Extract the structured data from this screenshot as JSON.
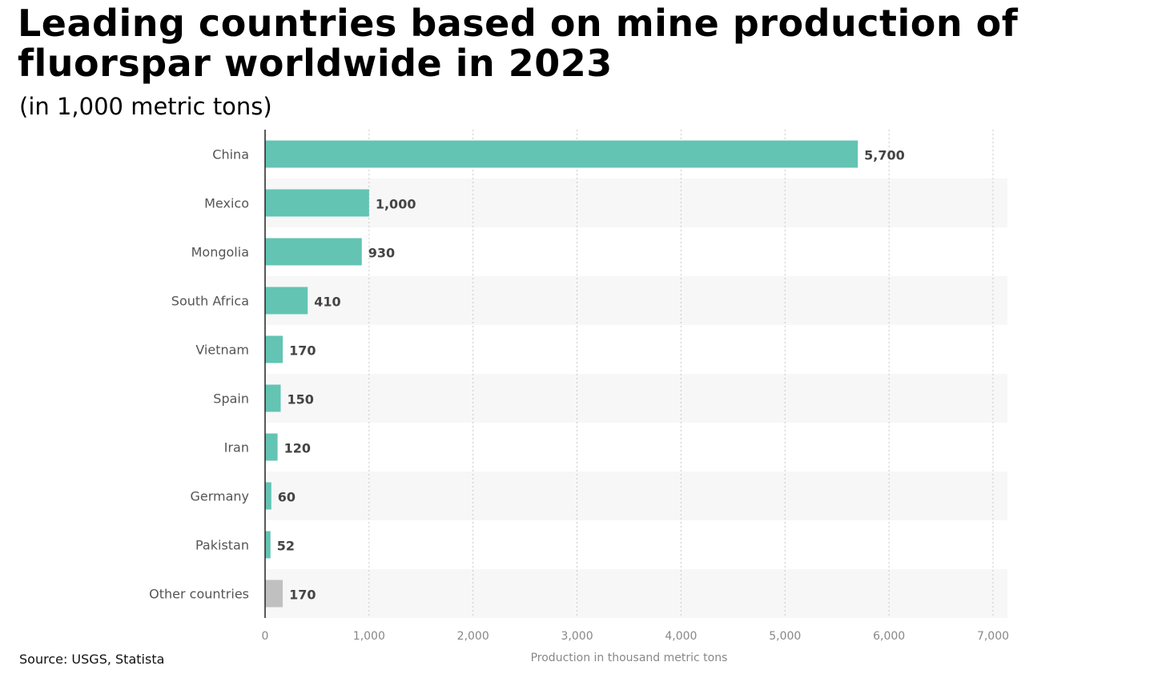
{
  "title": "Leading countries based on mine production of fluorspar worldwide in 2023",
  "subtitle": "(in 1,000 metric tons)",
  "source": "Source: USGS, Statista",
  "colors": {
    "bar": "#63c4b3",
    "other_bar": "#c0c0c0",
    "band": "#f7f7f7",
    "grid": "#c8c8c8"
  },
  "chart_data": {
    "type": "bar",
    "orientation": "horizontal",
    "title": "Leading countries based on mine production of fluorspar worldwide in 2023",
    "subtitle": "(in 1,000 metric tons)",
    "categories": [
      "China",
      "Mexico",
      "Mongolia",
      "South Africa",
      "Vietnam",
      "Spain",
      "Iran",
      "Germany",
      "Pakistan",
      "Other countries"
    ],
    "values": [
      5700,
      1000,
      930,
      410,
      170,
      150,
      120,
      60,
      52,
      170
    ],
    "value_labels": [
      "5,700",
      "1,000",
      "930",
      "410",
      "170",
      "150",
      "120",
      "60",
      "52",
      "170"
    ],
    "xlabel": "Production in thousand metric tons",
    "ylabel": "",
    "xlim": [
      0,
      7000
    ],
    "xticks": [
      0,
      1000,
      2000,
      3000,
      4000,
      5000,
      6000,
      7000
    ],
    "xtick_labels": [
      "0",
      "1,000",
      "2,000",
      "3,000",
      "4,000",
      "5,000",
      "6,000",
      "7,000"
    ],
    "grid": true
  }
}
